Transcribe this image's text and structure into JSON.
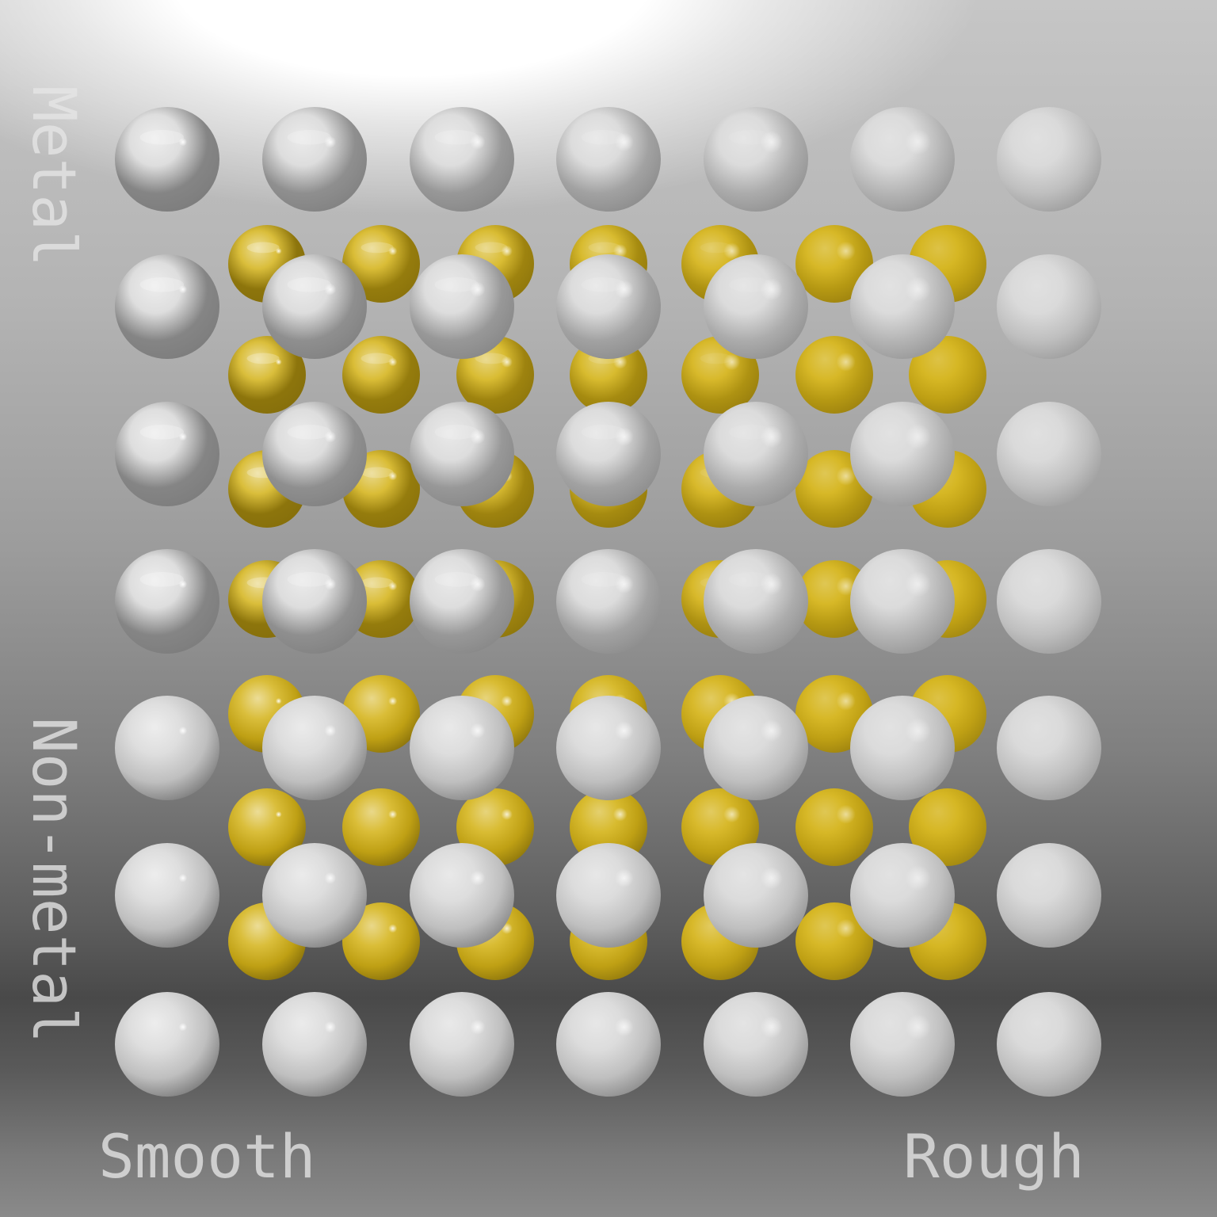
{
  "labels": {
    "metal": "Metal",
    "non_metal": "Non-metal",
    "smooth": "Smooth",
    "rough": "Rough"
  },
  "grid": {
    "rows": 7,
    "cols": 7,
    "sphere_color": "#d8d8d8",
    "inner_grid": {
      "rows": 6,
      "cols": 7,
      "sphere_color": "#d4b318"
    }
  },
  "colors": {
    "silver": "#d8d8d8",
    "gold": "#d4b318",
    "label": "#e6e6e6"
  }
}
